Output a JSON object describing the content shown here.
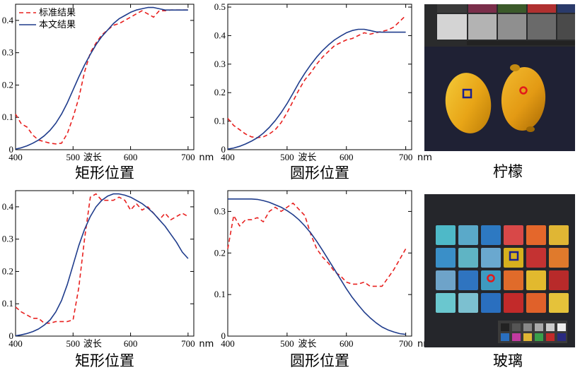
{
  "legend": {
    "standard": "标准结果",
    "ours": "本文结果"
  },
  "colors": {
    "standard": "#e8201f",
    "ours": "#1f3c8c"
  },
  "captions": {
    "lemon": "柠檬",
    "glass": "玻璃"
  },
  "chart_data": [
    {
      "type": "line",
      "id": "tl",
      "xlabel": "波长",
      "unit": "nm",
      "caption": "矩形位置",
      "xlim": [
        400,
        710
      ],
      "ylim": [
        0,
        0.45
      ],
      "xticks": [
        400,
        500,
        600,
        700
      ],
      "yticks": [
        0,
        0.1,
        0.2,
        0.3,
        0.4
      ],
      "legend": true,
      "series": [
        {
          "key": "standard",
          "name": "标准结果",
          "style": "dashed",
          "x": [
            400,
            410,
            420,
            430,
            440,
            450,
            460,
            470,
            480,
            490,
            500,
            510,
            520,
            530,
            540,
            550,
            560,
            570,
            580,
            590,
            600,
            610,
            620,
            630,
            640,
            650,
            660,
            670,
            680,
            690,
            700
          ],
          "y": [
            0.11,
            0.08,
            0.07,
            0.045,
            0.03,
            0.025,
            0.02,
            0.018,
            0.02,
            0.05,
            0.1,
            0.16,
            0.24,
            0.3,
            0.33,
            0.355,
            0.37,
            0.385,
            0.39,
            0.4,
            0.41,
            0.42,
            0.43,
            0.42,
            0.41,
            0.43,
            0.43,
            0.432,
            0.432,
            0.432,
            0.432
          ]
        },
        {
          "key": "ours",
          "name": "本文结果",
          "style": "solid",
          "x": [
            400,
            410,
            420,
            430,
            440,
            450,
            460,
            470,
            480,
            490,
            500,
            510,
            520,
            530,
            540,
            550,
            560,
            570,
            580,
            590,
            600,
            610,
            620,
            630,
            640,
            650,
            660,
            670,
            680,
            690,
            700
          ],
          "y": [
            0.002,
            0.006,
            0.012,
            0.02,
            0.03,
            0.043,
            0.06,
            0.082,
            0.11,
            0.145,
            0.185,
            0.225,
            0.262,
            0.295,
            0.325,
            0.35,
            0.37,
            0.39,
            0.405,
            0.415,
            0.425,
            0.432,
            0.436,
            0.44,
            0.44,
            0.436,
            0.432,
            0.432,
            0.432,
            0.432,
            0.432
          ]
        }
      ]
    },
    {
      "type": "line",
      "id": "tm",
      "xlabel": "波长",
      "unit": "nm",
      "caption": "圆形位置",
      "xlim": [
        400,
        710
      ],
      "ylim": [
        0,
        0.51
      ],
      "xticks": [
        400,
        500,
        600,
        700
      ],
      "yticks": [
        0,
        0.1,
        0.2,
        0.3,
        0.4,
        0.5
      ],
      "series": [
        {
          "key": "standard",
          "name": "标准结果",
          "style": "dashed",
          "x": [
            400,
            410,
            420,
            430,
            440,
            450,
            460,
            470,
            480,
            490,
            500,
            510,
            520,
            530,
            540,
            550,
            560,
            570,
            580,
            590,
            600,
            610,
            620,
            630,
            640,
            650,
            660,
            670,
            680,
            690,
            700
          ],
          "y": [
            0.11,
            0.085,
            0.07,
            0.055,
            0.045,
            0.042,
            0.045,
            0.055,
            0.07,
            0.095,
            0.13,
            0.17,
            0.21,
            0.245,
            0.27,
            0.3,
            0.325,
            0.345,
            0.365,
            0.375,
            0.385,
            0.39,
            0.4,
            0.41,
            0.405,
            0.41,
            0.415,
            0.42,
            0.43,
            0.45,
            0.47
          ]
        },
        {
          "key": "ours",
          "name": "本文结果",
          "style": "solid",
          "x": [
            400,
            410,
            420,
            430,
            440,
            450,
            460,
            470,
            480,
            490,
            500,
            510,
            520,
            530,
            540,
            550,
            560,
            570,
            580,
            590,
            600,
            610,
            620,
            630,
            640,
            650,
            660,
            670,
            680,
            690,
            700
          ],
          "y": [
            0.002,
            0.006,
            0.012,
            0.02,
            0.03,
            0.042,
            0.058,
            0.078,
            0.102,
            0.13,
            0.162,
            0.198,
            0.235,
            0.268,
            0.298,
            0.325,
            0.348,
            0.368,
            0.385,
            0.398,
            0.41,
            0.418,
            0.422,
            0.422,
            0.418,
            0.413,
            0.412,
            0.412,
            0.412,
            0.412,
            0.412
          ]
        }
      ]
    },
    {
      "type": "line",
      "id": "bl",
      "xlabel": "波长",
      "unit": "nm",
      "caption": "矩形位置",
      "xlim": [
        400,
        710
      ],
      "ylim": [
        0,
        0.45
      ],
      "xticks": [
        400,
        500,
        600,
        700
      ],
      "yticks": [
        0,
        0.1,
        0.2,
        0.3,
        0.4
      ],
      "series": [
        {
          "key": "standard",
          "name": "标准结果",
          "style": "dashed",
          "x": [
            400,
            410,
            420,
            430,
            440,
            450,
            460,
            470,
            480,
            490,
            500,
            510,
            520,
            530,
            540,
            550,
            560,
            570,
            580,
            590,
            600,
            610,
            620,
            630,
            640,
            650,
            660,
            670,
            680,
            690,
            700
          ],
          "y": [
            0.09,
            0.075,
            0.065,
            0.055,
            0.055,
            0.04,
            0.04,
            0.045,
            0.045,
            0.045,
            0.05,
            0.15,
            0.3,
            0.43,
            0.44,
            0.42,
            0.42,
            0.42,
            0.43,
            0.42,
            0.39,
            0.41,
            0.39,
            0.4,
            0.38,
            0.36,
            0.38,
            0.36,
            0.37,
            0.38,
            0.37
          ]
        },
        {
          "key": "ours",
          "name": "本文结果",
          "style": "solid",
          "x": [
            400,
            410,
            420,
            430,
            440,
            450,
            460,
            470,
            480,
            490,
            500,
            510,
            520,
            530,
            540,
            550,
            560,
            570,
            580,
            590,
            600,
            610,
            620,
            630,
            640,
            650,
            660,
            670,
            680,
            690,
            700
          ],
          "y": [
            0.001,
            0.004,
            0.008,
            0.014,
            0.022,
            0.034,
            0.05,
            0.075,
            0.11,
            0.16,
            0.22,
            0.28,
            0.33,
            0.37,
            0.4,
            0.42,
            0.433,
            0.44,
            0.44,
            0.436,
            0.43,
            0.42,
            0.41,
            0.396,
            0.38,
            0.36,
            0.34,
            0.315,
            0.29,
            0.26,
            0.24
          ]
        }
      ]
    },
    {
      "type": "line",
      "id": "bm",
      "xlabel": "波长",
      "unit": "nm",
      "caption": "圆形位置",
      "xlim": [
        400,
        710
      ],
      "ylim": [
        0,
        0.35
      ],
      "xticks": [
        400,
        500,
        600,
        700
      ],
      "yticks": [
        0,
        0.1,
        0.2,
        0.3
      ],
      "series": [
        {
          "key": "standard",
          "name": "标准结果",
          "style": "dashed",
          "x": [
            400,
            410,
            420,
            430,
            440,
            450,
            460,
            470,
            480,
            490,
            500,
            510,
            520,
            530,
            540,
            550,
            560,
            570,
            580,
            590,
            600,
            610,
            620,
            630,
            640,
            650,
            660,
            670,
            680,
            690,
            700
          ],
          "y": [
            0.21,
            0.29,
            0.265,
            0.28,
            0.28,
            0.285,
            0.275,
            0.3,
            0.31,
            0.3,
            0.31,
            0.32,
            0.305,
            0.29,
            0.245,
            0.21,
            0.19,
            0.175,
            0.155,
            0.145,
            0.13,
            0.125,
            0.125,
            0.13,
            0.12,
            0.12,
            0.12,
            0.14,
            0.16,
            0.185,
            0.21
          ]
        },
        {
          "key": "ours",
          "name": "本文结果",
          "style": "solid",
          "x": [
            400,
            410,
            420,
            430,
            440,
            450,
            460,
            470,
            480,
            490,
            500,
            510,
            520,
            530,
            540,
            550,
            560,
            570,
            580,
            590,
            600,
            610,
            620,
            630,
            640,
            650,
            660,
            670,
            680,
            690,
            700
          ],
          "y": [
            0.33,
            0.33,
            0.33,
            0.33,
            0.33,
            0.329,
            0.326,
            0.322,
            0.316,
            0.31,
            0.302,
            0.292,
            0.28,
            0.265,
            0.248,
            0.228,
            0.206,
            0.183,
            0.16,
            0.137,
            0.114,
            0.093,
            0.075,
            0.058,
            0.044,
            0.032,
            0.022,
            0.015,
            0.01,
            0.006,
            0.004
          ]
        }
      ]
    }
  ]
}
